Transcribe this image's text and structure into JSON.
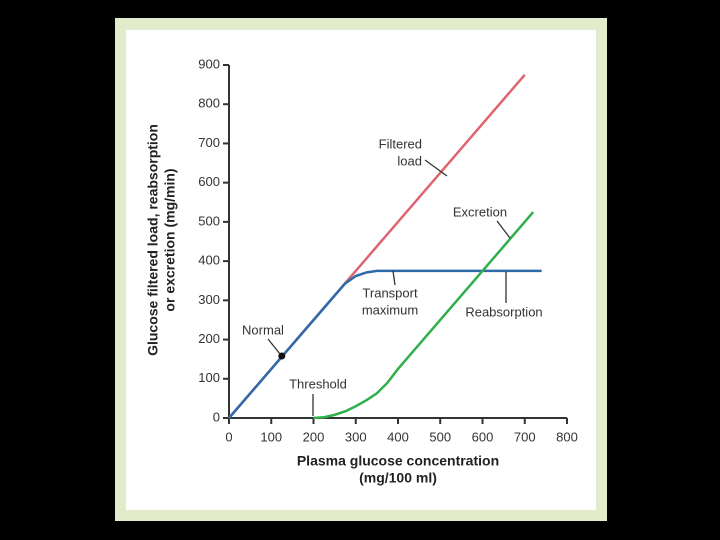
{
  "chart_data": {
    "type": "line",
    "xlabel": [
      "Plasma glucose concentration",
      "(mg/100 ml)"
    ],
    "ylabel": [
      "Glucose filtered load, reabsorption",
      "or excretion (mg/min)"
    ],
    "xlim": [
      0,
      800
    ],
    "xticks": [
      0,
      100,
      200,
      300,
      400,
      500,
      600,
      700,
      800
    ],
    "ylim": [
      0,
      900
    ],
    "yticks": [
      0,
      100,
      200,
      300,
      400,
      500,
      600,
      700,
      800,
      900
    ],
    "series": [
      {
        "color": "#e06470",
        "x": [
          0,
          700
        ],
        "values": [
          0,
          875
        ]
      },
      {
        "color": "#2f6aa8",
        "x": [
          0,
          250,
          275,
          300,
          325,
          350,
          375,
          740
        ],
        "values": [
          0,
          312,
          343,
          362,
          371,
          375,
          375,
          375
        ]
      },
      {
        "color": "#2fb04a",
        "x": [
          200,
          225,
          250,
          275,
          300,
          325,
          350,
          375,
          400,
          720
        ],
        "values": [
          0,
          2,
          8,
          17,
          30,
          45,
          63,
          90,
          125,
          525
        ]
      }
    ],
    "marker": {
      "x": 125,
      "y": 158,
      "color": "#111"
    },
    "annotations": [
      {
        "lines": [
          "Filtered",
          "load"
        ]
      },
      {
        "lines": [
          "Excretion"
        ]
      },
      {
        "lines": [
          "Transport",
          "maximum"
        ]
      },
      {
        "lines": [
          "Reabsorption"
        ]
      },
      {
        "lines": [
          "Normal"
        ]
      },
      {
        "lines": [
          "Threshold"
        ]
      }
    ]
  }
}
